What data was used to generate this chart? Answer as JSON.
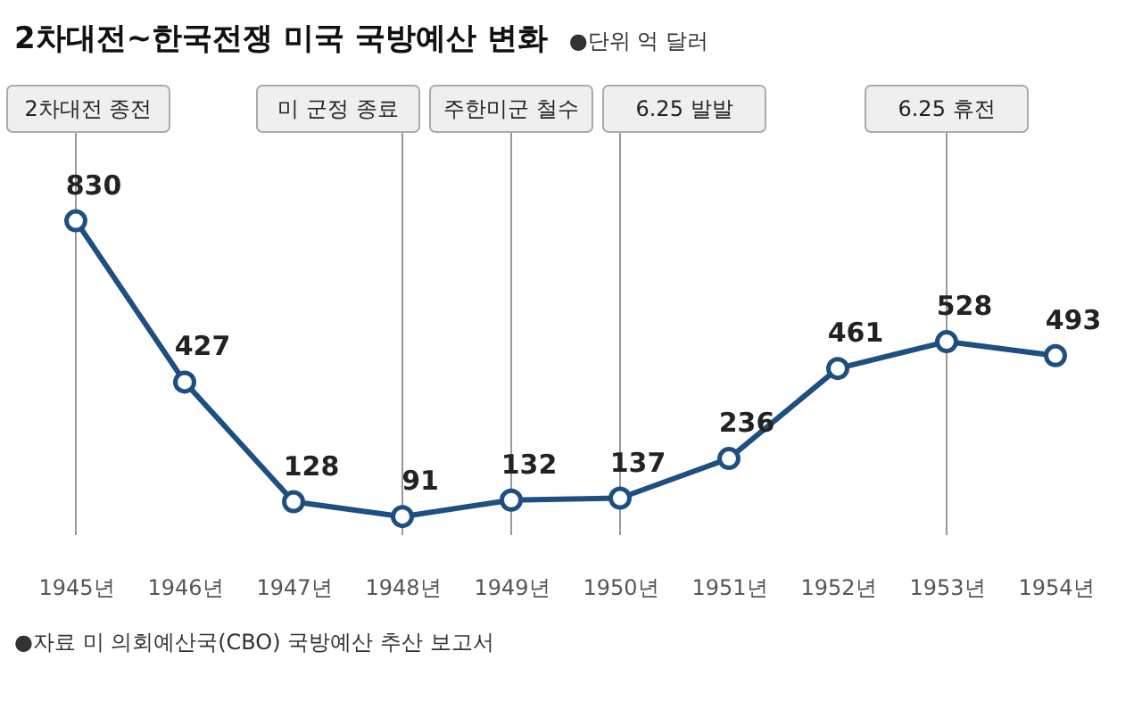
{
  "chart_data": {
    "type": "line",
    "title": "2차대전~한국전쟁 미국 국방예산 변화",
    "subtitle": "●단위 억 달러",
    "categories": [
      "1945년",
      "1946년",
      "1947년",
      "1948년",
      "1949년",
      "1950년",
      "1951년",
      "1952년",
      "1953년",
      "1954년"
    ],
    "series": [
      {
        "color": "#1d4f80",
        "values": [
          830,
          427,
          128,
          91,
          132,
          137,
          236,
          461,
          528,
          493
        ]
      }
    ],
    "data_labels": true,
    "marker": "circle",
    "ref_lines": [
      {
        "axis": "x",
        "value": "1945년",
        "label": "2차대전 종전"
      },
      {
        "axis": "x",
        "value": "1948년",
        "label": "미 군정 종료"
      },
      {
        "axis": "x",
        "value": "1949년",
        "label": "주한미군 철수"
      },
      {
        "axis": "x",
        "value": "1950년",
        "label": "6.25 발발"
      },
      {
        "axis": "x",
        "value": "1953년",
        "label": "6.25 휴전"
      }
    ],
    "annotations": [
      "●자료 미 의회예산국(CBO) 국방예산 추산 보고서"
    ]
  }
}
